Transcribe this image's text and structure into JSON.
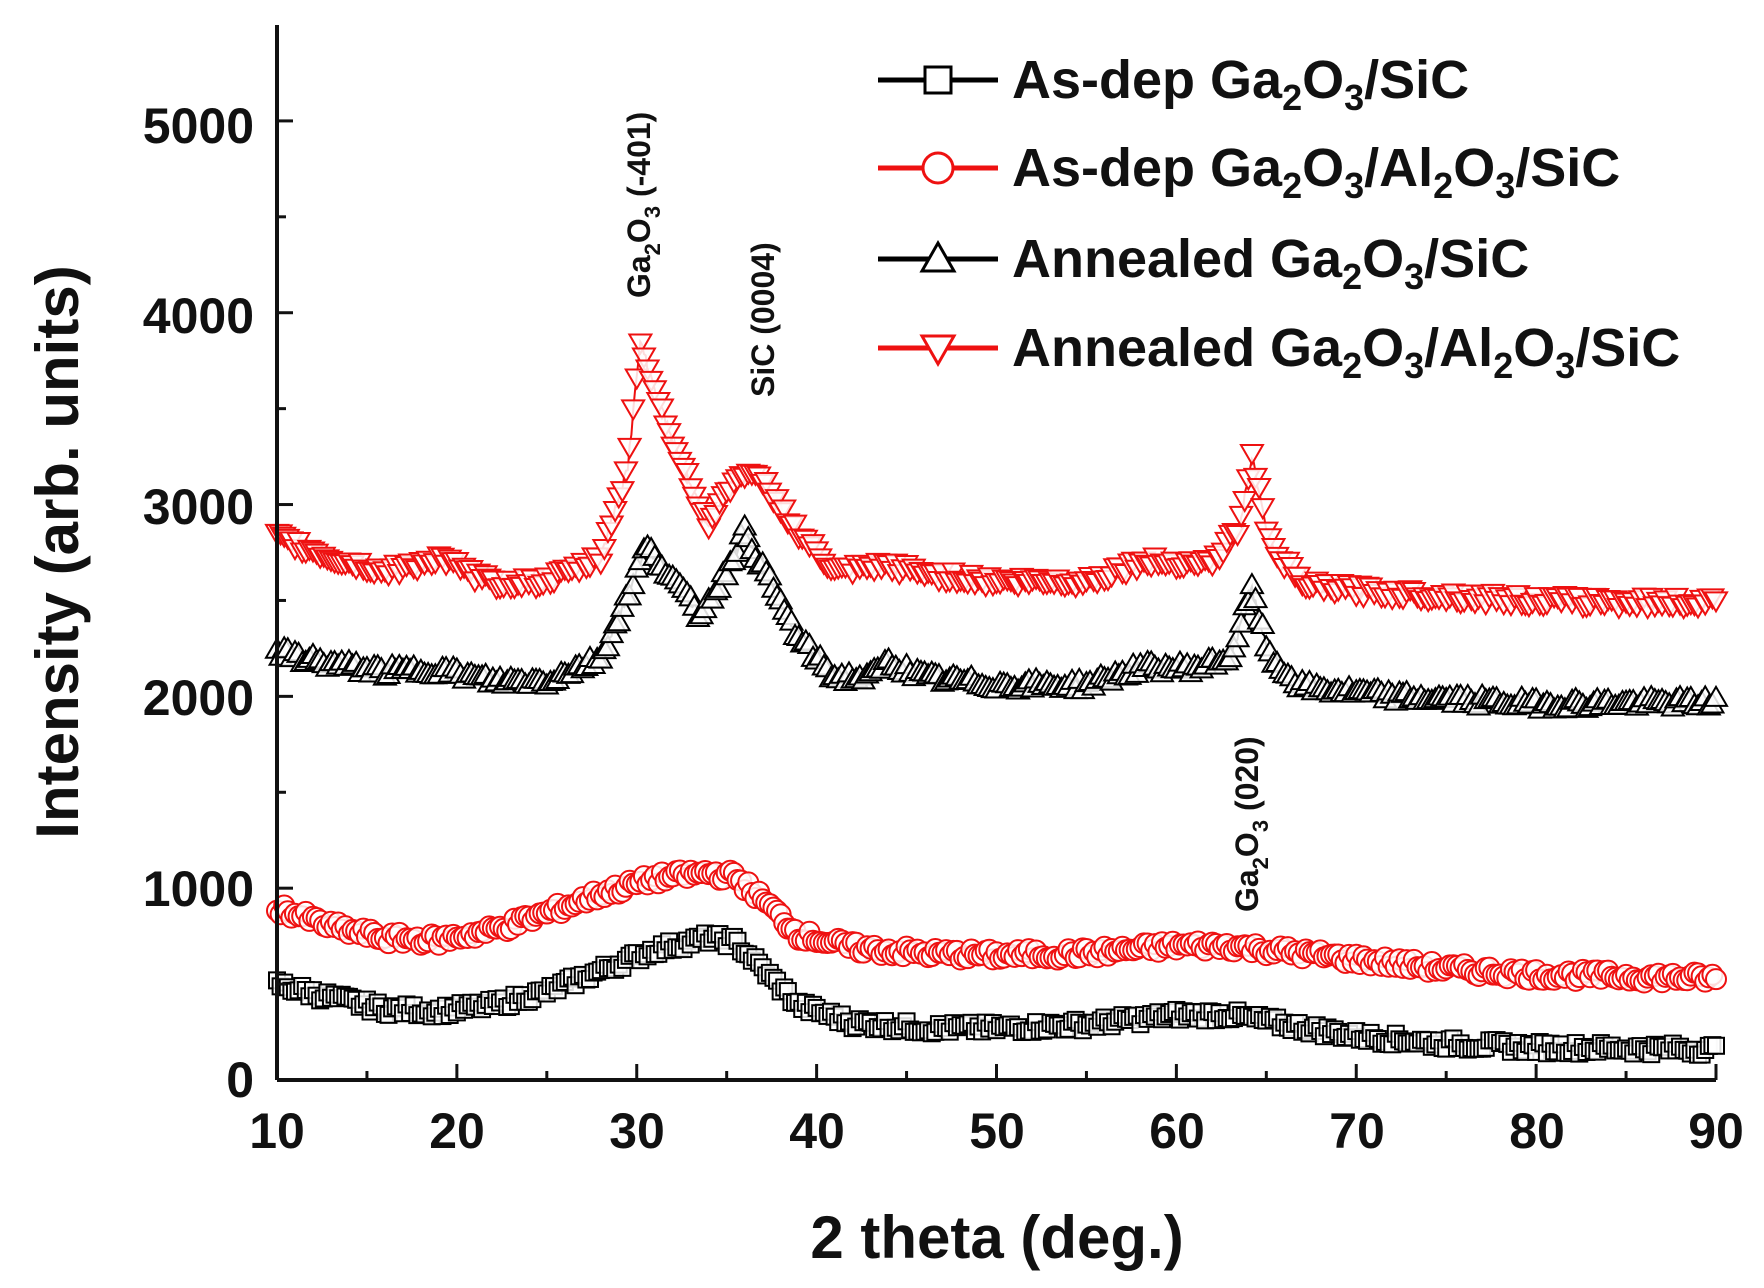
{
  "chart_data": {
    "type": "scatter",
    "xlabel": "2 theta (deg.)",
    "ylabel": "Intensity (arb. units)",
    "xlim": [
      10,
      90
    ],
    "ylim": [
      0,
      5500
    ],
    "xticks": [
      "10",
      "20",
      "30",
      "40",
      "50",
      "60",
      "70",
      "80",
      "90"
    ],
    "yticks": [
      "0",
      "1000",
      "2000",
      "3000",
      "4000",
      "5000"
    ],
    "grid": false,
    "legend_position": "top-right",
    "series": [
      {
        "name_main": "As-dep Ga",
        "sub1": "2",
        "mid1": "O",
        "sub2": "3",
        "tail": "/SiC",
        "marker": "square",
        "color": "#000000",
        "x": [
          10,
          13,
          16,
          19,
          22,
          25,
          28,
          31,
          34,
          35.5,
          37,
          39,
          42,
          46,
          50,
          55,
          60,
          63,
          66,
          70,
          75,
          80,
          85,
          90
        ],
        "y": [
          500,
          430,
          370,
          360,
          390,
          460,
          570,
          680,
          740,
          720,
          580,
          390,
          300,
          270,
          270,
          290,
          340,
          340,
          290,
          230,
          190,
          170,
          165,
          160
        ]
      },
      {
        "name_main": "As-dep Ga",
        "sub1": "2",
        "mid1": "O",
        "sub2": "3",
        "mid2": "/Al",
        "sub3": "2",
        "mid3": "O",
        "sub4": "3",
        "tail": "/SiC",
        "marker": "circle",
        "color": "#ee1111",
        "x": [
          10,
          13,
          16,
          19,
          22,
          25,
          28,
          31,
          34,
          35.5,
          37,
          39,
          42,
          46,
          50,
          55,
          60,
          63,
          66,
          70,
          75,
          80,
          85,
          90
        ],
        "y": [
          900,
          800,
          740,
          730,
          780,
          870,
          970,
          1050,
          1080,
          1060,
          940,
          760,
          690,
          660,
          650,
          660,
          700,
          700,
          670,
          630,
          580,
          550,
          540,
          530
        ]
      },
      {
        "name_main": "Annealed Ga",
        "sub1": "2",
        "mid1": "O",
        "sub2": "3",
        "tail": "/SiC",
        "marker": "triangle-up",
        "color": "#000000",
        "x": [
          10,
          13,
          16,
          19,
          22,
          25,
          28,
          29.5,
          30.5,
          32,
          33.5,
          35,
          36,
          37,
          39,
          41,
          43,
          44,
          46,
          50,
          55,
          58,
          61,
          63,
          64.2,
          65.2,
          67,
          72,
          80,
          90
        ],
        "y": [
          2230,
          2170,
          2130,
          2140,
          2080,
          2080,
          2200,
          2520,
          2780,
          2620,
          2420,
          2650,
          2860,
          2670,
          2300,
          2100,
          2100,
          2180,
          2100,
          2060,
          2060,
          2150,
          2150,
          2200,
          2560,
          2200,
          2050,
          2000,
          1960,
          1970
        ]
      },
      {
        "name_main": "Annealed Ga",
        "sub1": "2",
        "mid1": "O",
        "sub2": "3",
        "mid2": "/Al",
        "sub3": "2",
        "mid3": "O",
        "sub4": "3",
        "tail": "/SiC",
        "marker": "triangle-down",
        "color": "#ee1111",
        "x": [
          10,
          13,
          16,
          19,
          22,
          25,
          28,
          29.5,
          30.2,
          31,
          32.5,
          34,
          35.5,
          37,
          39,
          41,
          44,
          47,
          50,
          55,
          58,
          62,
          63.5,
          64.2,
          65.2,
          67,
          72,
          80,
          90
        ],
        "y": [
          2830,
          2720,
          2650,
          2720,
          2590,
          2600,
          2720,
          3200,
          3850,
          3600,
          3200,
          2900,
          3150,
          3130,
          2850,
          2650,
          2680,
          2630,
          2600,
          2600,
          2700,
          2700,
          2880,
          3250,
          2800,
          2580,
          2540,
          2500,
          2490
        ]
      }
    ],
    "annotations": [
      {
        "pre": "Ga",
        "sub1": "2",
        "mid": "O",
        "sub2": "3",
        "post": " (-401)",
        "x": 30
      },
      {
        "pre": "SiC (0004)",
        "sub1": "",
        "mid": "",
        "sub2": "",
        "post": "",
        "x": 36
      },
      {
        "pre": "Ga",
        "sub1": "2",
        "mid": "O",
        "sub2": "3",
        "post": " (020)",
        "x": 64.5
      }
    ]
  }
}
